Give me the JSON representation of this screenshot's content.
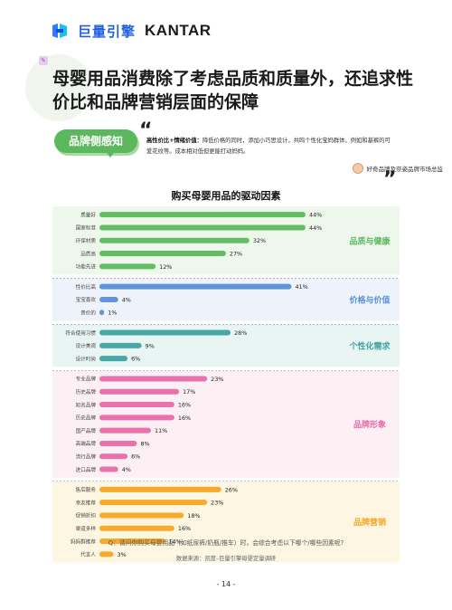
{
  "header": {
    "brand_cn": "巨量引擎",
    "brand_en": "KANTAR"
  },
  "headline": "母婴用品消费除了考虑品质和质量外，还追求性价比和品牌营销层面的保障",
  "pill_label": "品牌侧感知",
  "quote": {
    "bold": "高性价比+情绪价值：",
    "text": "降低价格的同时，添加小巧思设计，共鸣个性化宝妈群体，例如和基裤的可爱花纹等。成本相对低但更能打动妈妈。",
    "source": "好奇品牌及奈姿品牌市场总监"
  },
  "chart_title": "购买母婴用品的驱动因素",
  "question": "Q：请问你购买母婴用品（如纸尿裤/奶瓶/推车）时，会综合考虑以下哪个/哪些因素呢?",
  "source": "数据来源：凯度–巨量引擎母婴定量调研",
  "page_number": "- 14 -",
  "colors": {
    "green": "#5cb85c",
    "blue": "#5b8fd6",
    "pink": "#e86aa8",
    "orange": "#f5a623"
  },
  "chart_data": {
    "type": "bar",
    "orientation": "horizontal",
    "title": "购买母婴用品的驱动因素",
    "value_unit": "%",
    "xlim": [
      0,
      44
    ],
    "groups": [
      {
        "name": "品质与健康",
        "color": "#5cb85c",
        "bg": "#eef7ec",
        "categories": [
          "质量好",
          "国家标准",
          "环保材质",
          "品质高",
          "功能先进"
        ],
        "values": [
          44,
          44,
          32,
          27,
          12
        ]
      },
      {
        "name": "价格与价值",
        "color": "#5b8fd6",
        "bg": "#edf2fb",
        "categories": [
          "性价比高",
          "宝宝喜欢",
          "贵价的"
        ],
        "values": [
          41,
          4,
          1
        ]
      },
      {
        "name": "个性化需求",
        "color": "#3fa3a0",
        "bg": "#e9f5f3",
        "categories": [
          "符合使用习惯",
          "设计美观",
          "设计时尚"
        ],
        "values": [
          28,
          9,
          6
        ]
      },
      {
        "name": "品牌形象",
        "color": "#e86aa8",
        "bg": "#fcf0f5",
        "categories": [
          "专业品牌",
          "历史品牌",
          "知名品牌",
          "历史品牌",
          "国产品牌",
          "高端品牌",
          "流行品牌",
          "进口品牌"
        ],
        "values": [
          23,
          17,
          16,
          16,
          11,
          8,
          6,
          4
        ]
      },
      {
        "name": "品牌营销",
        "color": "#f5a623",
        "bg": "#fdf6e3",
        "categories": [
          "售后服务",
          "亲友推荐",
          "促销折扣",
          "渠道多样",
          "妈妈群推荐",
          "代言人"
        ],
        "values": [
          26,
          23,
          18,
          16,
          14,
          3
        ]
      }
    ]
  }
}
